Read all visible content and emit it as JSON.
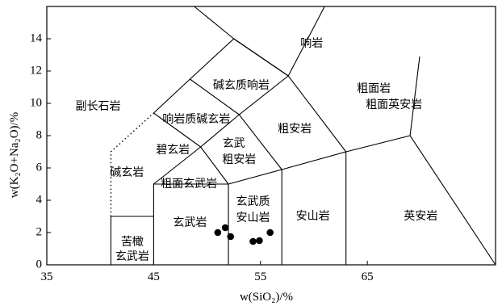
{
  "chart_data": {
    "type": "scatter",
    "title": "",
    "xlabel": "w(SiO₂)/%",
    "ylabel": "w(K₂O+Na₂O)/%",
    "xlim": [
      35,
      77
    ],
    "ylim": [
      0,
      16
    ],
    "x_ticks": [
      35,
      45,
      55,
      65
    ],
    "x_tick_labels": [
      "35",
      "45",
      "55",
      "65"
    ],
    "y_ticks": [
      0,
      2,
      4,
      6,
      8,
      10,
      12,
      14
    ],
    "y_tick_labels": [
      "0",
      "2",
      "4",
      "6",
      "8",
      "10",
      "12",
      "14"
    ],
    "grid": false,
    "legend": "none",
    "series": [
      {
        "x": [
          51.0,
          51.7,
          52.2,
          54.3,
          54.9,
          55.9
        ],
        "y": [
          2.0,
          2.3,
          1.75,
          1.45,
          1.5,
          2.0
        ]
      }
    ],
    "boundaries": [
      {
        "style": "solid",
        "points": [
          [
            41,
            0
          ],
          [
            41,
            3
          ]
        ]
      },
      {
        "style": "solid",
        "points": [
          [
            41,
            3
          ],
          [
            45,
            3
          ]
        ]
      },
      {
        "style": "solid",
        "points": [
          [
            45,
            0
          ],
          [
            45,
            5
          ],
          [
            52,
            5
          ],
          [
            52,
            0
          ]
        ]
      },
      {
        "style": "solid",
        "points": [
          [
            52,
            5
          ],
          [
            57,
            5.9
          ],
          [
            57,
            0
          ]
        ]
      },
      {
        "style": "solid",
        "points": [
          [
            57,
            5.9
          ],
          [
            63,
            7
          ],
          [
            63,
            0
          ]
        ]
      },
      {
        "style": "solid",
        "points": [
          [
            63,
            7
          ],
          [
            69,
            8
          ],
          [
            77,
            0
          ]
        ]
      },
      {
        "style": "solid",
        "points": [
          [
            69,
            8
          ],
          [
            69.9,
            12.9
          ]
        ]
      },
      {
        "style": "solid",
        "points": [
          [
            45,
            5
          ],
          [
            49.4,
            7.3
          ],
          [
            52,
            5
          ]
        ]
      },
      {
        "style": "solid",
        "points": [
          [
            49.4,
            7.3
          ],
          [
            53,
            9.3
          ],
          [
            57,
            5.9
          ]
        ]
      },
      {
        "style": "solid",
        "points": [
          [
            53,
            9.3
          ],
          [
            57.6,
            11.7
          ],
          [
            63,
            7
          ]
        ]
      },
      {
        "style": "solid",
        "points": [
          [
            49.4,
            7.3
          ],
          [
            45,
            9.4
          ]
        ]
      },
      {
        "style": "solid",
        "points": [
          [
            53,
            9.3
          ],
          [
            48.4,
            11.5
          ]
        ]
      },
      {
        "style": "solid",
        "points": [
          [
            57.6,
            11.7
          ],
          [
            52.5,
            14
          ]
        ]
      },
      {
        "style": "solid",
        "points": [
          [
            45,
            9.4
          ],
          [
            48.4,
            11.5
          ],
          [
            52.5,
            14
          ],
          [
            57.6,
            11.7
          ]
        ]
      },
      {
        "style": "solid",
        "points": [
          [
            57.6,
            11.7
          ],
          [
            61,
            16
          ]
        ]
      },
      {
        "style": "solid",
        "points": [
          [
            52.5,
            14
          ],
          [
            48.8,
            16
          ]
        ]
      },
      {
        "style": "dotted",
        "points": [
          [
            41,
            3
          ],
          [
            41,
            7
          ],
          [
            45,
            9.4
          ]
        ]
      }
    ],
    "annotations": [
      {
        "text": "响岩",
        "x": 59.8,
        "y": 13.7
      },
      {
        "text": "碱玄质响岩",
        "x": 53.2,
        "y": 11.1
      },
      {
        "text": "粗面岩",
        "x": 65.6,
        "y": 10.9
      },
      {
        "text": "粗面英安岩",
        "x": 67.5,
        "y": 9.9
      },
      {
        "text": "副长石岩",
        "x": 39.8,
        "y": 9.8
      },
      {
        "text": "响岩质碱玄岩",
        "x": 49.0,
        "y": 9.0
      },
      {
        "text": "粗安岩",
        "x": 58.2,
        "y": 8.4
      },
      {
        "text": "玄武",
        "x": 52.5,
        "y": 7.5
      },
      {
        "text": "粗安岩",
        "x": 53.0,
        "y": 6.5
      },
      {
        "text": "碧玄岩",
        "x": 46.8,
        "y": 7.1
      },
      {
        "text": "碱玄岩",
        "x": 42.5,
        "y": 5.7
      },
      {
        "text": "粗面玄武岩",
        "x": 48.3,
        "y": 5.0
      },
      {
        "text": "玄武质",
        "x": 54.3,
        "y": 3.9
      },
      {
        "text": "安山岩",
        "x": 54.3,
        "y": 2.9
      },
      {
        "text": "安山岩",
        "x": 59.9,
        "y": 3.0
      },
      {
        "text": "英安岩",
        "x": 70.0,
        "y": 3.0
      },
      {
        "text": "玄武岩",
        "x": 48.4,
        "y": 2.6
      },
      {
        "text": "苦橄",
        "x": 43.0,
        "y": 1.4
      },
      {
        "text": "玄武岩",
        "x": 43.0,
        "y": 0.5
      }
    ]
  }
}
